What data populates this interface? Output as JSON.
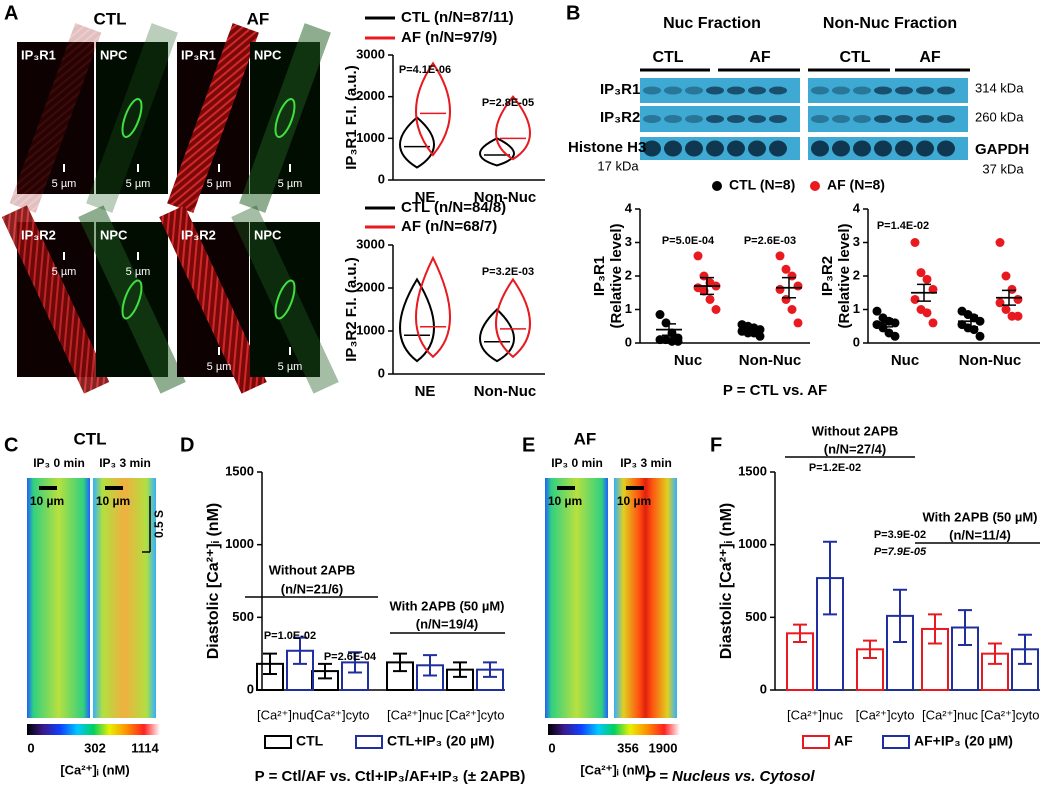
{
  "panel_labels": [
    "A",
    "B",
    "C",
    "D",
    "E",
    "F"
  ],
  "panel_a": {
    "conditions": [
      "CTL",
      "AF"
    ],
    "images": [
      {
        "stain": "IP₃R1",
        "scale": "5 µm"
      },
      {
        "stain": "NPC",
        "scale": "5 µm"
      },
      {
        "stain": "IP₃R1",
        "scale": "5 µm"
      },
      {
        "stain": "NPC",
        "scale": "5 µm"
      },
      {
        "stain": "IP₃R2",
        "scale": "5 µm"
      },
      {
        "stain": "NPC",
        "scale": "5 µm"
      },
      {
        "stain": "IP₃R2",
        "scale": "5 µm"
      },
      {
        "stain": "NPC",
        "scale": "5 µm"
      }
    ]
  },
  "panel_b": {
    "fractions": [
      "Nuc Fraction",
      "Non-Nuc Fraction"
    ],
    "groups": [
      "CTL",
      "AF",
      "CTL",
      "AF"
    ],
    "proteins": [
      "IP₃R1",
      "IP₃R2",
      "Histone H3"
    ],
    "histone_size": "17 kDa",
    "sizes": [
      "314 kDa",
      "260 kDa",
      "GAPDH"
    ],
    "gapdh_size": "37 kDa"
  },
  "panel_c": {
    "title": "CTL",
    "scans": [
      "IP₃ 0 min",
      "IP₃ 3 min"
    ],
    "scale_bar": "10 µm",
    "time_bar": "0.5 S",
    "colorbar_ticks": [
      0,
      302,
      1114
    ],
    "colorbar_label": "[Ca²⁺]ᵢ (nM)"
  },
  "panel_e": {
    "title": "AF",
    "scans": [
      "IP₃ 0 min",
      "IP₃ 3 min"
    ],
    "scale_bar": "10 µm",
    "colorbar_ticks": [
      0,
      356,
      1900
    ],
    "colorbar_label": "[Ca²⁺]ᵢ (nM)"
  },
  "chart_data": [
    {
      "type": "violin",
      "ylabel": "IP₃R1 F.I. (a.u.)",
      "categories": [
        "NE",
        "Non-Nuc"
      ],
      "series": [
        {
          "name": "CTL (n/N=87/11)",
          "color": "#000000",
          "values": [
            800,
            600
          ],
          "min": [
            300,
            350
          ],
          "max": [
            1500,
            1000
          ]
        },
        {
          "name": "AF (n/N=97/9)",
          "color": "#e8191f",
          "values": [
            1600,
            1000
          ],
          "min": [
            600,
            500
          ],
          "max": [
            2800,
            2000
          ]
        }
      ],
      "ylim": [
        0,
        3000
      ],
      "yticks": [
        0,
        1000,
        2000,
        3000
      ],
      "annotations": [
        "P=4.1E-06",
        "P=2.8E-05"
      ]
    },
    {
      "type": "violin",
      "ylabel": "IP₃R2 F.I. (a.u.)",
      "categories": [
        "NE",
        "Non-Nuc"
      ],
      "series": [
        {
          "name": "CTL (n/N=84/8)",
          "color": "#000000",
          "values": [
            900,
            750
          ],
          "min": [
            300,
            300
          ],
          "max": [
            2200,
            1500
          ]
        },
        {
          "name": "AF (n/N=68/7)",
          "color": "#e8191f",
          "values": [
            1100,
            1050
          ],
          "min": [
            400,
            400
          ],
          "max": [
            2700,
            2200
          ]
        }
      ],
      "ylim": [
        0,
        3000
      ],
      "yticks": [
        0,
        1000,
        2000,
        3000
      ],
      "annotations": [
        "P=3.2E-03"
      ]
    },
    {
      "type": "dot",
      "ylabel": [
        "IP₃R1",
        "(Relative level)"
      ],
      "categories": [
        "Nuc",
        "Non-Nuc"
      ],
      "series": [
        {
          "name": "CTL (N=8)",
          "color": "#000000",
          "values": [
            0.4,
            0.4
          ],
          "errors": [
            0.17,
            0.08
          ],
          "points": [
            [
              0.85,
              0.6,
              0.3,
              0.15,
              0.1,
              0.1,
              0.05,
              0.05
            ],
            [
              0.55,
              0.5,
              0.45,
              0.4,
              0.35,
              0.3,
              0.3,
              0.2
            ]
          ]
        },
        {
          "name": "AF (N=8)",
          "color": "#e8191f",
          "values": [
            1.7,
            1.65
          ],
          "errors": [
            0.25,
            0.3
          ],
          "points": [
            [
              2.6,
              2.0,
              1.8,
              1.7,
              1.65,
              1.55,
              1.3,
              1.0
            ],
            [
              2.6,
              2.2,
              2.0,
              1.7,
              1.6,
              1.3,
              1.0,
              0.6
            ]
          ]
        }
      ],
      "ylim": [
        0,
        4
      ],
      "yticks": [
        0,
        1,
        2,
        3,
        4
      ],
      "annotations": [
        "P=5.0E-04",
        "P=2.6E-03"
      ],
      "footnote": "P = CTL vs. AF"
    },
    {
      "type": "dot",
      "ylabel": [
        "IP₃R2",
        "(Relative level)"
      ],
      "categories": [
        "Nuc",
        "Non-Nuc"
      ],
      "series": [
        {
          "color": "#000000",
          "values": [
            0.6,
            0.65
          ],
          "errors": [
            0.12,
            0.17
          ],
          "points": [
            [
              0.95,
              0.75,
              0.65,
              0.6,
              0.55,
              0.45,
              0.3,
              0.2
            ],
            [
              0.95,
              0.85,
              0.75,
              0.65,
              0.55,
              0.45,
              0.4,
              0.2
            ]
          ]
        },
        {
          "color": "#e8191f",
          "values": [
            1.5,
            1.35
          ],
          "errors": [
            0.25,
            0.22
          ],
          "points": [
            [
              3.0,
              2.1,
              1.9,
              1.6,
              1.3,
              1.0,
              0.9,
              0.6
            ],
            [
              3.0,
              2.0,
              1.6,
              1.3,
              1.2,
              1.0,
              0.8,
              0.8
            ]
          ]
        }
      ],
      "ylim": [
        0,
        4
      ],
      "yticks": [
        0,
        1,
        2,
        3,
        4
      ],
      "annotations": [
        "P=1.4E-02"
      ]
    },
    {
      "type": "bar",
      "ylabel": "Diastolic [Ca²⁺]ᵢ (nM)",
      "categories": [
        "[Ca²⁺]nuc",
        "[Ca²⁺]cyto",
        "[Ca²⁺]nuc",
        "[Ca²⁺]cyto"
      ],
      "series": [
        {
          "name": "CTL",
          "color": "#000000",
          "values": [
            180,
            130,
            190,
            140
          ],
          "errors": [
            70,
            50,
            60,
            50
          ]
        },
        {
          "name": "CTL+IP₃ (20 µM)",
          "color": "#1f2f9f",
          "values": [
            270,
            190,
            170,
            140
          ],
          "errors": [
            90,
            70,
            70,
            50
          ]
        }
      ],
      "groups": [
        {
          "label": "Without 2APB",
          "n": "(n/N=21/6)"
        },
        {
          "label": "With 2APB (50 µM)",
          "n": "(n/N=19/4)"
        }
      ],
      "ylim": [
        0,
        1500
      ],
      "yticks": [
        0,
        500,
        1000,
        1500
      ],
      "annotations": [
        "P=1.0E-02",
        "P=2.6E-04"
      ],
      "footnote": "P = Ctl/AF vs. Ctl+IP₃/AF+IP₃ (± 2APB)"
    },
    {
      "type": "bar",
      "ylabel": "Diastolic [Ca²⁺]ᵢ (nM)",
      "categories": [
        "[Ca²⁺]nuc",
        "[Ca²⁺]cyto",
        "[Ca²⁺]nuc",
        "[Ca²⁺]cyto"
      ],
      "series": [
        {
          "name": "AF",
          "color": "#e8191f",
          "values": [
            390,
            280,
            420,
            250
          ],
          "errors": [
            60,
            60,
            100,
            70
          ]
        },
        {
          "name": "AF+IP₃ (20 µM)",
          "color": "#1f2f9f",
          "values": [
            770,
            510,
            430,
            280
          ],
          "errors": [
            250,
            180,
            120,
            100
          ]
        }
      ],
      "groups": [
        {
          "label": "Without 2APB",
          "n": "(n/N=27/4)"
        },
        {
          "label": "With 2APB (50 µM)",
          "n": "(n/N=11/4)"
        }
      ],
      "ylim": [
        0,
        1500
      ],
      "yticks": [
        0,
        500,
        1000,
        1500
      ],
      "annotations": [
        "P=1.2E-02",
        "P=3.9E-02",
        {
          "text": "P=7.9E-05",
          "color": "#1f2f9f",
          "italic": true
        }
      ],
      "footnote": {
        "text": "P = Nucleus vs. Cytosol",
        "color": "#1f2f9f",
        "italic": true
      }
    }
  ]
}
